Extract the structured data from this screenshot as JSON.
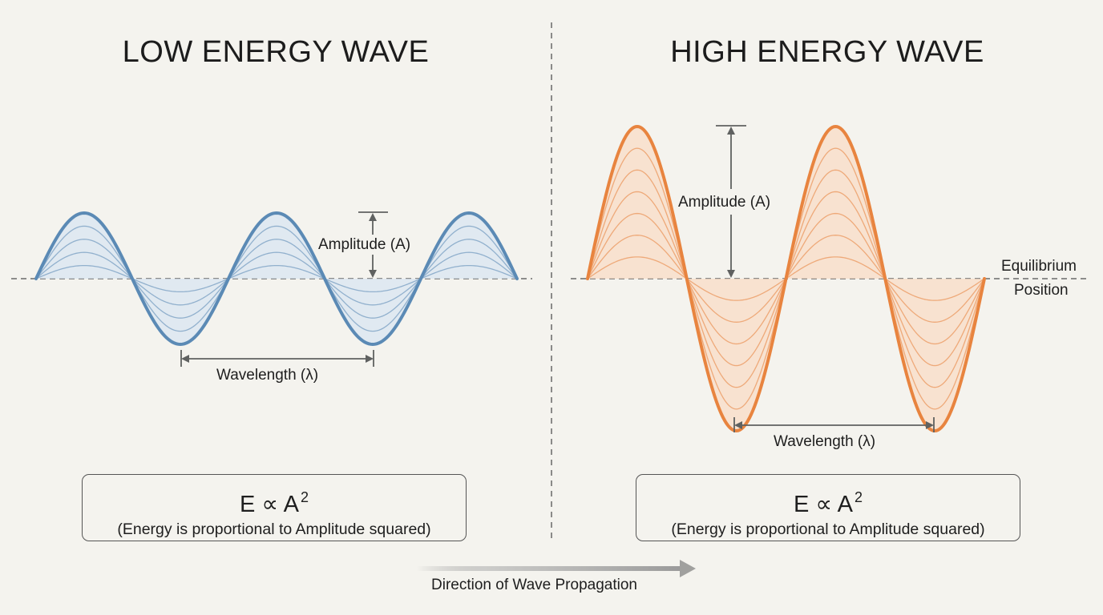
{
  "titles": {
    "left": "LOW ENERGY WAVE",
    "right": "HIGH ENERGY WAVE"
  },
  "low_wave": {
    "color": "#5b8ab5",
    "fill": "#d9e6f1",
    "amplitude_label": "Amplitude (A)",
    "wavelength_label": "Wavelength (λ)",
    "cycles": 2.5
  },
  "high_wave": {
    "color": "#e8843f",
    "fill": "#f9dcc6",
    "amplitude_label": "Amplitude (A)",
    "wavelength_label": "Wavelength (λ)",
    "cycles": 2
  },
  "equilibrium": {
    "line1": "Equilibrium",
    "line2": "Position"
  },
  "equations": {
    "left": {
      "lhs": "E ∝ A",
      "exponent": "2",
      "caption": "(Energy is proportional to Amplitude squared)"
    },
    "right": {
      "lhs": "E ∝ A",
      "exponent": "2",
      "caption": "(Energy is proportional to Amplitude squared)"
    }
  },
  "propagation": {
    "label": "Direction of Wave Propagation",
    "arrow_color": "#9a9a9a"
  }
}
